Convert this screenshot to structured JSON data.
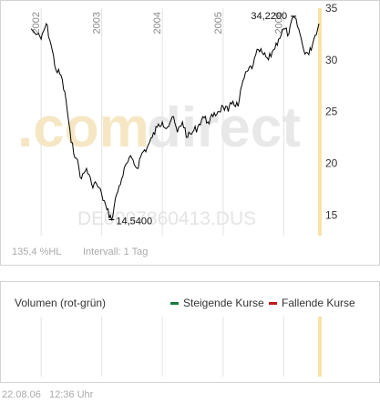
{
  "price_chart": {
    "watermark_brand_a": ".com",
    "watermark_brand_b": "direct",
    "watermark_code": "DE0007860413.DUS",
    "year_labels": [
      "2002",
      "2003",
      "2004",
      "2005",
      "2006"
    ],
    "y_tick_labels": [
      "35",
      "30",
      "25",
      "20",
      "15"
    ],
    "high_label": "34,2200",
    "low_label": "14,5400",
    "perf_label": "135,4 %HL",
    "interval_label": "Intervall: 1 Tag",
    "colors": {
      "line": "#000000",
      "grid": "#e3e3e3",
      "today_band": "#f9e2a5"
    }
  },
  "volume_panel": {
    "title": "Volumen (rot-grün)",
    "legend_up": "Steigende Kurse",
    "legend_down": "Fallende Kurse",
    "colors": {
      "up": "#1a7a3c",
      "down": "#c0191b"
    }
  },
  "timestamp": {
    "date": "22.08.06",
    "time": "12:36 Uhr"
  },
  "chart_data": {
    "type": "line",
    "x": [
      "2001-11",
      "2002-01",
      "2002-02",
      "2002-03",
      "2002-04",
      "2002-05",
      "2002-06",
      "2002-07",
      "2002-08",
      "2002-09",
      "2002-10",
      "2002-11",
      "2002-12",
      "2003-01",
      "2003-02",
      "2003-03",
      "2003-04",
      "2003-05",
      "2003-06",
      "2003-07",
      "2003-08",
      "2003-09",
      "2003-10",
      "2003-11",
      "2003-12",
      "2004-01",
      "2004-02",
      "2004-03",
      "2004-04",
      "2004-05",
      "2004-06",
      "2004-07",
      "2004-08",
      "2004-09",
      "2004-10",
      "2004-11",
      "2004-12",
      "2005-01",
      "2005-02",
      "2005-03",
      "2005-04",
      "2005-05",
      "2005-06",
      "2005-07",
      "2005-08",
      "2005-09",
      "2005-10",
      "2005-11",
      "2005-12",
      "2006-01",
      "2006-02",
      "2006-03",
      "2006-04",
      "2006-05",
      "2006-06",
      "2006-07",
      "2006-08"
    ],
    "values": [
      33,
      32,
      33.5,
      31.5,
      29,
      28.5,
      26,
      22,
      20.5,
      18.5,
      19.5,
      18,
      18,
      17,
      15.5,
      14.54,
      17,
      18.5,
      20,
      20.5,
      19.5,
      21,
      21.5,
      22.5,
      23.5,
      24,
      23.5,
      24.5,
      23,
      24,
      22.5,
      23,
      23.5,
      24.5,
      24,
      24.5,
      25,
      25.5,
      25,
      26,
      25.5,
      28,
      29,
      29.5,
      31,
      30.5,
      30,
      31,
      32,
      33,
      32.5,
      34.22,
      33,
      31,
      30.5,
      32,
      33.5
    ],
    "ylim": [
      13,
      35
    ],
    "y_ticks": [
      35,
      30,
      25,
      20,
      15
    ],
    "grid": "vertical",
    "annotations": [
      {
        "label": "34,2200",
        "x": "2006-03",
        "y": 34.22
      },
      {
        "label": "14,5400",
        "x": "2003-03",
        "y": 14.54
      }
    ]
  }
}
